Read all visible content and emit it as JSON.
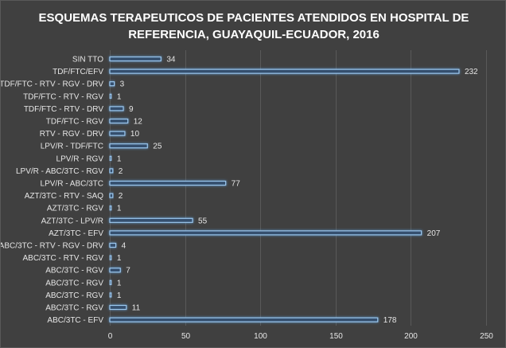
{
  "chart_data": {
    "type": "bar",
    "orientation": "horizontal",
    "title": "ESQUEMAS TERAPEUTICOS DE PACIENTES ATENDIDOS EN HOSPITAL DE\nREFERENCIA, GUAYAQUIL-ECUADOR, 2016",
    "categories": [
      "SIN TTO",
      "TDF/FTC/EFV",
      "TDF/FTC - RTV - RGV - DRV",
      "TDF/FTC - RTV - RGV",
      "TDF/FTC - RTV - DRV",
      "TDF/FTC - RGV",
      "RTV - RGV - DRV",
      "LPV/R - TDF/FTC",
      "LPV/R - RGV",
      "LPV/R - ABC/3TC - RGV",
      "LPV/R - ABC/3TC",
      "AZT/3TC - RTV - SAQ",
      "AZT/3TC - RGV",
      "AZT/3TC - LPV/R",
      "AZT/3TC - EFV",
      "ABC/3TC - RTV - RGV - DRV",
      "ABC/3TC - RTV - RGV",
      "ABC/3TC - RGV",
      "ABC/3TC - RGV",
      "ABC/3TC - RGV",
      "ABC/3TC - RGV",
      "ABC/3TC - EFV"
    ],
    "values": [
      34,
      232,
      3,
      1,
      9,
      12,
      10,
      25,
      1,
      2,
      77,
      2,
      1,
      55,
      207,
      4,
      1,
      7,
      1,
      1,
      11,
      178
    ],
    "xlim": [
      0,
      250
    ],
    "xticks": [
      0,
      50,
      100,
      150,
      200,
      250
    ],
    "xlabel": "",
    "ylabel": "",
    "grid": true,
    "legend": "none",
    "colors": {
      "background": "#404040",
      "bar_fill": "#35506e",
      "bar_outline": "#9cc7ee",
      "text": "#e6e6e6",
      "grid": "#595959"
    }
  }
}
